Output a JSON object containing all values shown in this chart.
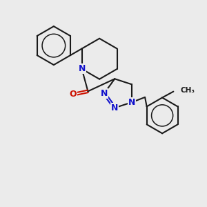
{
  "bg_color": "#ebebeb",
  "bond_color": "#1a1a1a",
  "nitrogen_color": "#1111cc",
  "oxygen_color": "#cc1100",
  "bond_width": 1.5,
  "figsize": [
    3.0,
    3.0
  ],
  "dpi": 100,
  "xlim": [
    0,
    10
  ],
  "ylim": [
    0,
    10
  ]
}
